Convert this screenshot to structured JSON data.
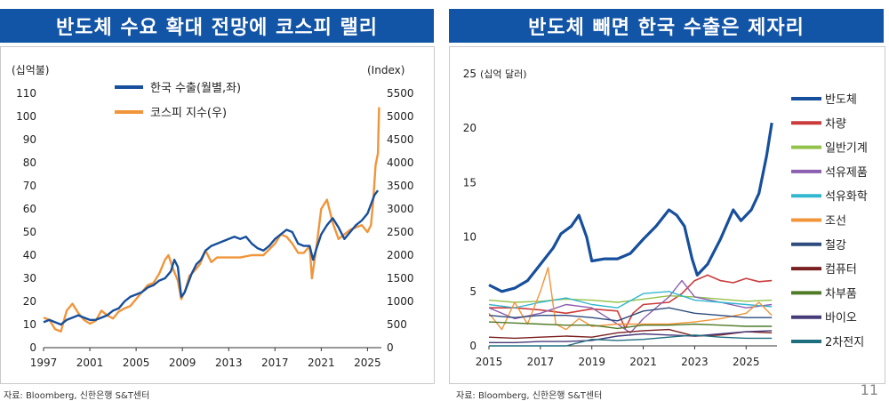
{
  "left": {
    "title": "반도체 수요 확대 전망에 코스피 랠리",
    "source": "자료: Bloomberg, 신한은행 S&T센터",
    "chart_data": {
      "type": "line",
      "title": "반도체 수요 확대 전망에 코스피 랠리",
      "ylabel_left": "(십억불)",
      "ylabel_right": "(Index)",
      "x_ticks": [
        "1997",
        "2001",
        "2005",
        "2009",
        "2013",
        "2017",
        "2021",
        "2025"
      ],
      "xlim": [
        1997,
        2026.2
      ],
      "y_left_ticks": [
        "0",
        "10",
        "20",
        "30",
        "40",
        "50",
        "60",
        "70",
        "80",
        "90",
        "100",
        "110"
      ],
      "y_left_range": [
        0,
        110
      ],
      "y_right_ticks": [
        "0",
        "500",
        "1000",
        "1500",
        "2000",
        "2500",
        "3000",
        "3500",
        "4000",
        "4500",
        "5000",
        "5500"
      ],
      "y_right_range": [
        0,
        5500
      ],
      "series": [
        {
          "name": "한국 수출(월별,좌)",
          "axis": "left",
          "color": "#174f9c",
          "x": [
            1997,
            1997.5,
            1998,
            1998.5,
            1999,
            1999.5,
            2000,
            2000.5,
            2001,
            2001.5,
            2002,
            2002.5,
            2003,
            2003.5,
            2004,
            2004.5,
            2005,
            2005.5,
            2006,
            2006.5,
            2007,
            2007.5,
            2008,
            2008.3,
            2008.6,
            2008.9,
            2009.2,
            2009.5,
            2009.8,
            2010.2,
            2010.6,
            2011,
            2011.5,
            2012,
            2012.5,
            2013,
            2013.5,
            2014,
            2014.5,
            2015,
            2015.5,
            2016,
            2016.5,
            2017,
            2017.5,
            2018,
            2018.5,
            2019,
            2019.5,
            2020,
            2020.3,
            2020.6,
            2021,
            2021.5,
            2022,
            2022.5,
            2023,
            2023.5,
            2024,
            2024.5,
            2025,
            2025.3,
            2025.6,
            2025.9
          ],
          "y": [
            11,
            12,
            11,
            10,
            12,
            13,
            14,
            13,
            12,
            12,
            13,
            14,
            16,
            17,
            20,
            22,
            23,
            24,
            26,
            27,
            29,
            30,
            33,
            38,
            35,
            22,
            24,
            28,
            32,
            36,
            38,
            42,
            44,
            45,
            46,
            47,
            48,
            47,
            48,
            45,
            43,
            42,
            44,
            47,
            49,
            51,
            50,
            45,
            44,
            44,
            38,
            43,
            49,
            53,
            56,
            52,
            47,
            50,
            53,
            55,
            58,
            62,
            66,
            68
          ]
        },
        {
          "name": "코스피 지수(우)",
          "axis": "right",
          "color": "#f0953a",
          "x": [
            1997,
            1997.5,
            1998,
            1998.5,
            1999,
            1999.5,
            2000,
            2000.5,
            2001,
            2001.5,
            2002,
            2002.5,
            2003,
            2003.5,
            2004,
            2004.5,
            2005,
            2005.5,
            2006,
            2006.5,
            2007,
            2007.5,
            2007.8,
            2008.2,
            2008.6,
            2008.9,
            2009.2,
            2009.6,
            2010,
            2010.5,
            2011,
            2011.5,
            2012,
            2013,
            2014,
            2015,
            2016,
            2017,
            2017.5,
            2018,
            2018.5,
            2019,
            2019.5,
            2020,
            2020.2,
            2020.6,
            2021,
            2021.5,
            2022,
            2022.5,
            2023,
            2023.5,
            2024,
            2024.5,
            2025,
            2025.3,
            2025.5,
            2025.7,
            2025.9,
            2026
          ],
          "y": [
            650,
            600,
            400,
            350,
            800,
            950,
            750,
            600,
            520,
            580,
            800,
            700,
            630,
            780,
            850,
            900,
            1050,
            1200,
            1350,
            1400,
            1600,
            1900,
            2000,
            1700,
            1450,
            1050,
            1200,
            1550,
            1650,
            1800,
            2100,
            1850,
            1950,
            1950,
            1950,
            2000,
            2000,
            2250,
            2450,
            2400,
            2250,
            2050,
            2050,
            2200,
            1500,
            2200,
            3000,
            3200,
            2700,
            2350,
            2450,
            2550,
            2600,
            2650,
            2500,
            2650,
            3200,
            3950,
            4200,
            5200
          ]
        }
      ]
    }
  },
  "right": {
    "title": "반도체 빼면 한국 수출은 제자리",
    "source": "자료: Bloomberg, 신한은행 S&T센터",
    "chart_data": {
      "type": "line",
      "title": "반도체 빼면 한국 수출은 제자리",
      "ylabel": "(십억 달러)",
      "x_ticks": [
        "2015",
        "2017",
        "2019",
        "2021",
        "2023",
        "2025"
      ],
      "xlim": [
        2015,
        2026.2
      ],
      "y_ticks": [
        "0",
        "5",
        "10",
        "15",
        "20",
        "25"
      ],
      "ylim": [
        0,
        25
      ],
      "series": [
        {
          "name": "반도체",
          "color": "#174f9c",
          "width": 3.2,
          "x": [
            2015,
            2015.5,
            2016,
            2016.5,
            2017,
            2017.5,
            2017.8,
            2018.2,
            2018.5,
            2018.8,
            2019,
            2019.5,
            2020,
            2020.5,
            2021,
            2021.5,
            2022,
            2022.3,
            2022.6,
            2022.9,
            2023.1,
            2023.5,
            2024,
            2024.5,
            2024.8,
            2025.2,
            2025.5,
            2025.8,
            2026
          ],
          "y": [
            5.6,
            5.0,
            5.3,
            6.0,
            7.5,
            9.0,
            10.3,
            11.0,
            12.0,
            10.0,
            7.8,
            8.0,
            8.0,
            8.5,
            9.8,
            11.0,
            12.5,
            12.0,
            11.0,
            8.0,
            6.5,
            7.5,
            9.8,
            12.5,
            11.5,
            12.5,
            14.0,
            17.5,
            20.5
          ]
        },
        {
          "name": "차량",
          "color": "#cc3b3b",
          "width": 1.6,
          "x": [
            2015,
            2016,
            2017,
            2018,
            2019,
            2020,
            2020.3,
            2020.6,
            2021,
            2022,
            2022.5,
            2023,
            2023.5,
            2024,
            2024.5,
            2025,
            2025.5,
            2026
          ],
          "y": [
            3.5,
            3.5,
            3.3,
            3.0,
            3.4,
            3.2,
            1.6,
            3.0,
            3.8,
            4.0,
            4.8,
            6.0,
            6.5,
            6.0,
            5.8,
            6.2,
            5.9,
            6.0
          ]
        },
        {
          "name": "일반기계",
          "color": "#93c24a",
          "width": 1.4,
          "x": [
            2015,
            2016,
            2017,
            2018,
            2019,
            2020,
            2021,
            2022,
            2023,
            2024,
            2025,
            2026
          ],
          "y": [
            4.2,
            4.0,
            4.1,
            4.3,
            4.2,
            4.0,
            4.3,
            4.6,
            4.5,
            4.3,
            4.1,
            4.2
          ]
        },
        {
          "name": "석유제품",
          "color": "#8d5fb0",
          "width": 1.4,
          "x": [
            2015,
            2016,
            2017,
            2018,
            2019,
            2020,
            2020.5,
            2021,
            2022,
            2022.5,
            2023,
            2024,
            2025,
            2026
          ],
          "y": [
            3.5,
            2.5,
            3.0,
            3.8,
            3.5,
            2.0,
            1.2,
            2.5,
            4.5,
            6.0,
            4.5,
            4.0,
            3.5,
            3.8
          ]
        },
        {
          "name": "석유화학",
          "color": "#33b6cf",
          "width": 1.4,
          "x": [
            2015,
            2016,
            2017,
            2018,
            2019,
            2020,
            2021,
            2022,
            2023,
            2024,
            2025,
            2026
          ],
          "y": [
            3.8,
            3.5,
            4.0,
            4.4,
            3.8,
            3.5,
            4.8,
            5.0,
            4.2,
            4.0,
            3.8,
            3.6
          ]
        },
        {
          "name": "조선",
          "color": "#f0953a",
          "width": 1.4,
          "x": [
            2015,
            2015.5,
            2016,
            2016.5,
            2017,
            2017.3,
            2017.6,
            2018,
            2018.5,
            2019,
            2020,
            2021,
            2022,
            2023,
            2024,
            2025,
            2025.5,
            2026
          ],
          "y": [
            3.0,
            1.5,
            4.0,
            2.0,
            5.0,
            7.2,
            2.0,
            1.5,
            2.5,
            1.8,
            2.0,
            2.0,
            2.0,
            2.2,
            2.5,
            3.0,
            4.0,
            2.8
          ]
        },
        {
          "name": "철강",
          "color": "#2d4b7c",
          "width": 1.4,
          "x": [
            2015,
            2016,
            2017,
            2018,
            2019,
            2020,
            2021,
            2022,
            2023,
            2024,
            2025,
            2026
          ],
          "y": [
            2.8,
            2.6,
            2.8,
            2.8,
            2.6,
            2.3,
            3.2,
            3.5,
            3.0,
            2.8,
            2.6,
            2.6
          ]
        },
        {
          "name": "컴퓨터",
          "color": "#7a1f1f",
          "width": 1.4,
          "x": [
            2015,
            2016,
            2017,
            2018,
            2019,
            2020,
            2021,
            2022,
            2023,
            2024,
            2025,
            2026
          ],
          "y": [
            0.8,
            0.7,
            0.8,
            0.9,
            0.8,
            1.2,
            1.4,
            1.5,
            0.9,
            1.0,
            1.3,
            1.2
          ]
        },
        {
          "name": "차부품",
          "color": "#4f7a28",
          "width": 1.4,
          "x": [
            2015,
            2016,
            2017,
            2018,
            2019,
            2020,
            2021,
            2022,
            2023,
            2024,
            2025,
            2026
          ],
          "y": [
            2.2,
            2.1,
            2.0,
            1.9,
            1.9,
            1.6,
            1.9,
            1.9,
            2.0,
            1.9,
            1.8,
            1.8
          ]
        },
        {
          "name": "바이오",
          "color": "#463a78",
          "width": 1.4,
          "x": [
            2015,
            2016,
            2017,
            2018,
            2019,
            2020,
            2021,
            2022,
            2023,
            2024,
            2025,
            2026
          ],
          "y": [
            0.3,
            0.3,
            0.4,
            0.4,
            0.5,
            0.9,
            1.1,
            1.0,
            0.9,
            1.1,
            1.3,
            1.4
          ]
        },
        {
          "name": "2차전지",
          "color": "#1f6e7e",
          "width": 1.4,
          "x": [
            2015,
            2016,
            2017,
            2018,
            2019,
            2020,
            2021,
            2022,
            2023,
            2024,
            2025,
            2026
          ],
          "y": [
            0.0,
            0.0,
            0.0,
            0.0,
            0.6,
            0.5,
            0.6,
            0.8,
            1.0,
            0.8,
            0.7,
            0.7
          ]
        }
      ]
    }
  },
  "page_number": "11"
}
